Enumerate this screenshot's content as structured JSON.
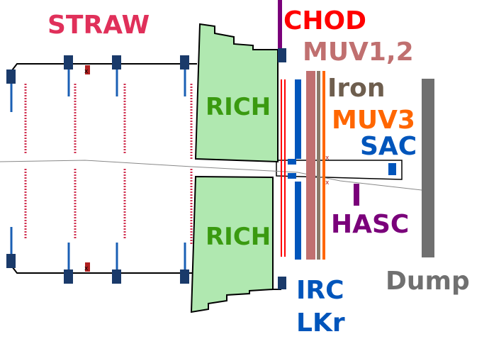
{
  "labels": {
    "straw": "STRAW",
    "chod": "CHOD",
    "muv12": "MUV1,2",
    "iron": "Iron",
    "muv3": "MUV3",
    "sac": "SAC",
    "rich_top": "RICH",
    "rich_bottom": "RICH",
    "hasc": "HASC",
    "irc": "IRC",
    "lkr": "LKr",
    "dump": "Dump"
  },
  "colors": {
    "straw": "#e0305a",
    "chod": "#ff0000",
    "muv12": "#c07070",
    "iron": "#6e5e4e",
    "muv3": "#ff6600",
    "sac": "#0055bb",
    "rich_text": "#3a9a10",
    "rich_fill": "#b0e8b0",
    "hasc": "#7a007a",
    "irc": "#0055bb",
    "lkr": "#0055bb",
    "dump": "#707070",
    "chamber_box": "#1a3a6a",
    "chamber_post": "#1a5fb4"
  }
}
